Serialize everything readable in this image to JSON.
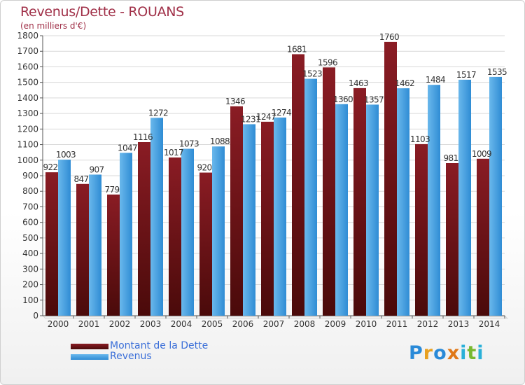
{
  "header": {
    "title": "Revenus/Dette - ROUANS",
    "subtitle": "(en milliers d'€)"
  },
  "legend": {
    "dette_label": "Montant de la Dette",
    "revenus_label": "Revenus"
  },
  "logo": {
    "text": "Proxiti"
  },
  "colors": {
    "dette_top": "#8a1c24",
    "dette_bottom": "#4a0a0a",
    "revenus_top": "#6ab8ec",
    "revenus_bottom": "#2f8cd4",
    "title": "#a03048",
    "legend_text": "#3a6ed8"
  },
  "chart_data": {
    "type": "bar",
    "title": "Revenus/Dette - ROUANS",
    "subtitle": "(en milliers d'€)",
    "categories": [
      "2000",
      "2001",
      "2002",
      "2003",
      "2004",
      "2005",
      "2006",
      "2007",
      "2008",
      "2009",
      "2010",
      "2011",
      "2012",
      "2013",
      "2014"
    ],
    "series": [
      {
        "name": "Montant de la Dette",
        "values": [
          922,
          847,
          779,
          1116,
          1017,
          920,
          1346,
          1247,
          1681,
          1596,
          1463,
          1760,
          1103,
          981,
          1009
        ]
      },
      {
        "name": "Revenus",
        "values": [
          1003,
          907,
          1047,
          1272,
          1073,
          1088,
          1231,
          1274,
          1523,
          1360,
          1357,
          1462,
          1484,
          1517,
          1535
        ]
      }
    ],
    "ylim": [
      0,
      1800
    ],
    "yticks": [
      0,
      100,
      200,
      300,
      400,
      500,
      600,
      700,
      800,
      900,
      1000,
      1100,
      1200,
      1300,
      1400,
      1500,
      1600,
      1700,
      1800
    ],
    "grid": true,
    "legend_position": "bottom-left"
  }
}
